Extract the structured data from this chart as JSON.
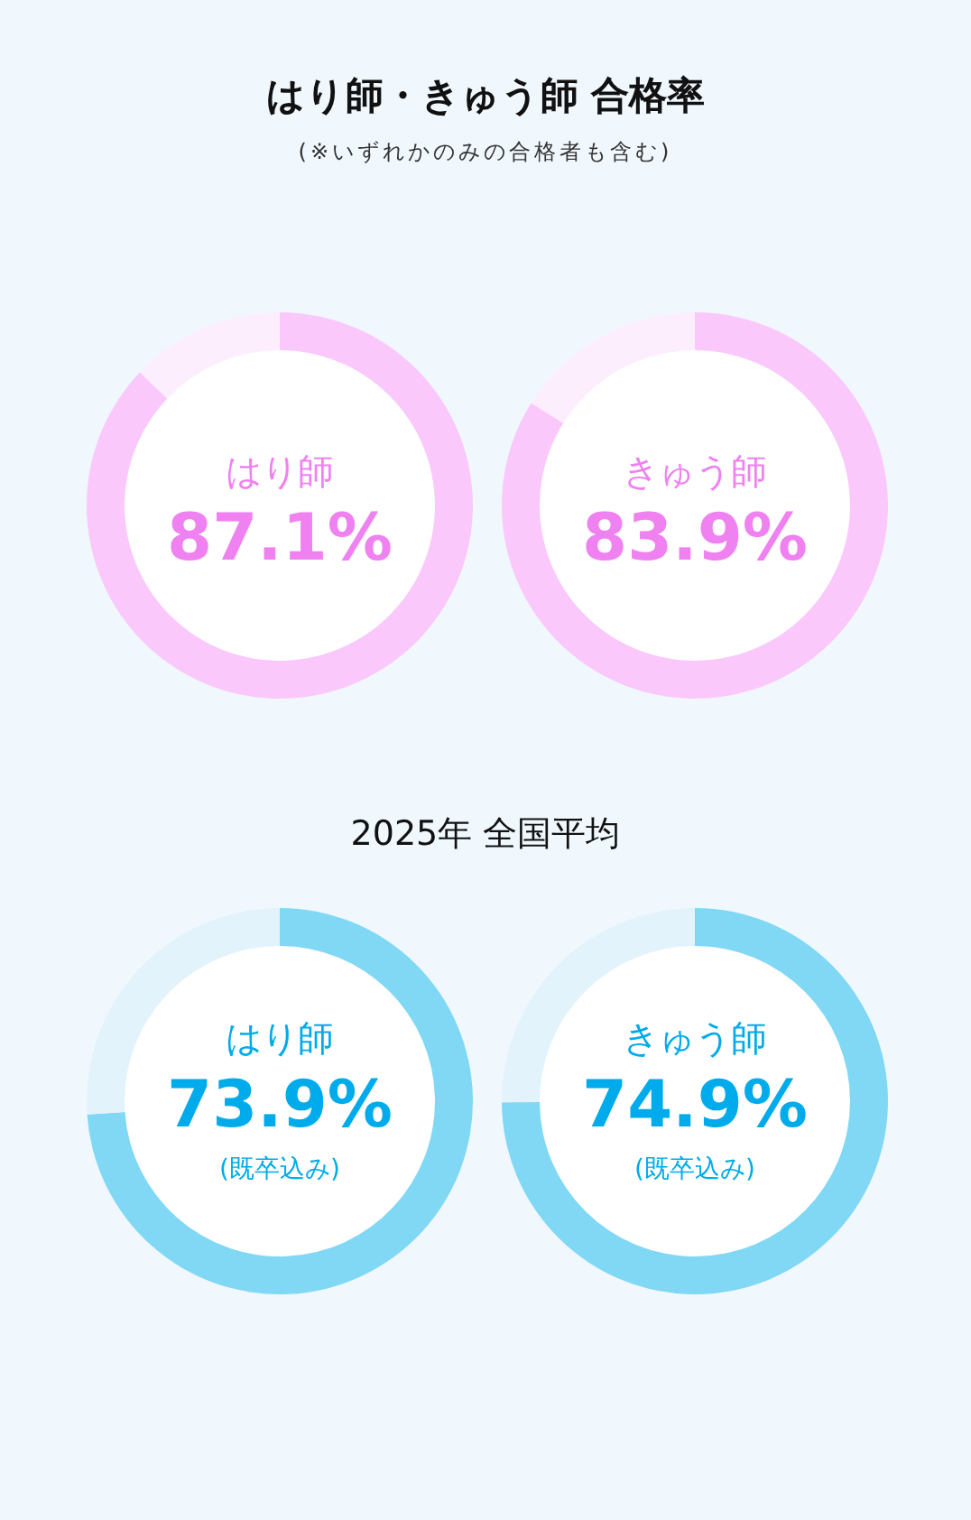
{
  "chart_data": [
    {
      "type": "donut",
      "title": "はり師・きゅう師 合格率",
      "subtitle": "(※いずれかのみの合格者も含む)",
      "categories": [
        "はり師",
        null
      ],
      "values": [
        87.1,
        12.9
      ],
      "value_labels": [
        "87.1%",
        null
      ],
      "colors": [
        "#fac8fb",
        "#fdeefe"
      ]
    },
    {
      "type": "donut",
      "categories": [
        "きゅう師",
        null
      ],
      "values": [
        83.9,
        16.1
      ],
      "value_labels": [
        "83.9%",
        null
      ],
      "colors": [
        "#fac8fb",
        "#fdeefe"
      ]
    },
    {
      "type": "donut",
      "title": "2025年 全国平均",
      "categories": [
        "はり師",
        null
      ],
      "values": [
        73.9,
        26.1
      ],
      "value_labels": [
        "73.9%",
        null
      ],
      "colors": [
        "#80d8f5",
        "#e3f3fc"
      ],
      "annotations": [
        "(既卒込み)"
      ]
    },
    {
      "type": "donut",
      "categories": [
        "きゅう師",
        null
      ],
      "values": [
        74.9,
        25.1
      ],
      "value_labels": [
        "74.9%",
        null
      ],
      "colors": [
        "#80d8f5",
        "#e3f3fc"
      ],
      "annotations": [
        "(既卒込み)"
      ]
    }
  ]
}
